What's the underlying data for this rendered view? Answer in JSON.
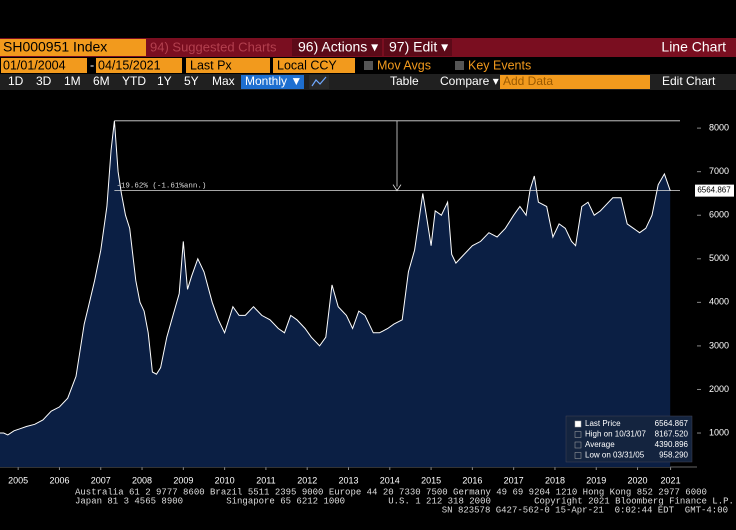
{
  "toolbar": {
    "ticker": "SH000951 Index",
    "suggested": "94) Suggested Charts",
    "actions": "96) Actions ▾",
    "edit": "97) Edit ▾",
    "view": "Line Chart",
    "start_date": "01/01/2004",
    "date_sep": "-",
    "end_date": "04/15/2021",
    "field": "Last Px",
    "currency": "Local CCY",
    "mov_avgs": "Mov Avgs",
    "key_events": "Key Events",
    "ranges": [
      "1D",
      "3D",
      "1M",
      "6M",
      "YTD",
      "1Y",
      "5Y",
      "Max"
    ],
    "period": "Monthly ▼",
    "table": "Table",
    "compare": "Compare ▾",
    "add_data": "Add Data",
    "edit_chart": "Edit Chart"
  },
  "chart_data": {
    "type": "area",
    "annotation": "-19.62% (-1.61%ann.)",
    "x": [
      2005.06,
      2005.15,
      2005.25,
      2005.4,
      2005.55,
      2005.7,
      2005.9,
      2006.1,
      2006.3,
      2006.5,
      2006.7,
      2006.9,
      2007.1,
      2007.2,
      2007.35,
      2007.5,
      2007.65,
      2007.75,
      2007.83,
      2007.92,
      2008.0,
      2008.1,
      2008.2,
      2008.35,
      2008.45,
      2008.55,
      2008.65,
      2008.75,
      2008.85,
      2008.95,
      2009.1,
      2009.25,
      2009.4,
      2009.5,
      2009.6,
      2009.7,
      2009.85,
      2010.0,
      2010.2,
      2010.35,
      2010.5,
      2010.7,
      2010.85,
      2011.0,
      2011.2,
      2011.4,
      2011.6,
      2011.8,
      2011.95,
      2012.1,
      2012.25,
      2012.45,
      2012.6,
      2012.8,
      2012.95,
      2013.1,
      2013.25,
      2013.45,
      2013.6,
      2013.75,
      2013.9,
      2014.1,
      2014.25,
      2014.45,
      2014.6,
      2014.8,
      2014.95,
      2015.1,
      2015.3,
      2015.4,
      2015.5,
      2015.6,
      2015.75,
      2015.9,
      2016.0,
      2016.1,
      2016.3,
      2016.5,
      2016.7,
      2016.9,
      2017.1,
      2017.3,
      2017.5,
      2017.65,
      2017.8,
      2017.9,
      2018.0,
      2018.1,
      2018.3,
      2018.45,
      2018.6,
      2018.75,
      2018.9,
      2019.0,
      2019.15,
      2019.3,
      2019.45,
      2019.6,
      2019.8,
      2019.9,
      2020.1,
      2020.25,
      2020.4,
      2020.55,
      2020.7,
      2020.85,
      2021.0,
      2021.15,
      2021.29
    ],
    "values": [
      1000,
      1000,
      958,
      1050,
      1100,
      1150,
      1200,
      1300,
      1500,
      1600,
      1800,
      2300,
      3500,
      3900,
      4500,
      5200,
      6200,
      7500,
      8167.52,
      7000,
      6500,
      6000,
      5700,
      4500,
      4000,
      3800,
      3300,
      2400,
      2350,
      2500,
      3200,
      3700,
      4200,
      5400,
      4300,
      4600,
      5000,
      4700,
      4000,
      3600,
      3300,
      3900,
      3700,
      3700,
      3900,
      3700,
      3600,
      3400,
      3300,
      3700,
      3600,
      3400,
      3200,
      3000,
      3200,
      4400,
      3900,
      3700,
      3400,
      3800,
      3700,
      3300,
      3300,
      3400,
      3500,
      3600,
      4700,
      5200,
      6500,
      5900,
      5300,
      6100,
      6000,
      6300,
      5100,
      4900,
      5100,
      5300,
      5400,
      5600,
      5500,
      5700,
      6000,
      6200,
      6000,
      6600,
      6900,
      6300,
      6200,
      5500,
      5800,
      5700,
      5400,
      5300,
      6200,
      6300,
      6000,
      6100,
      6300,
      6400,
      6400,
      5800,
      5700,
      5600,
      5700,
      6000,
      6700,
      6950,
      6564.867
    ],
    "color": "#ffffff",
    "fill": "#0b1f44",
    "xlim": [
      2005.06,
      2021.94
    ],
    "ylim": [
      220,
      8370
    ],
    "xticks": [
      {
        "value": 2005.5,
        "label": "2005"
      },
      {
        "value": 2006.5,
        "label": "2006"
      },
      {
        "value": 2007.5,
        "label": "2007"
      },
      {
        "value": 2008.5,
        "label": "2008"
      },
      {
        "value": 2009.5,
        "label": "2009"
      },
      {
        "value": 2010.5,
        "label": "2010"
      },
      {
        "value": 2011.5,
        "label": "2011"
      },
      {
        "value": 2012.5,
        "label": "2012"
      },
      {
        "value": 2013.5,
        "label": "2013"
      },
      {
        "value": 2014.5,
        "label": "2014"
      },
      {
        "value": 2015.5,
        "label": "2015"
      },
      {
        "value": 2016.5,
        "label": "2016"
      },
      {
        "value": 2017.5,
        "label": "2017"
      },
      {
        "value": 2018.5,
        "label": "2018"
      },
      {
        "value": 2019.5,
        "label": "2019"
      },
      {
        "value": 2020.5,
        "label": "2020"
      },
      {
        "value": 2021.3,
        "label": "2021"
      }
    ],
    "yticks": [
      1000,
      2000,
      3000,
      4000,
      5000,
      6000,
      7000,
      8000
    ],
    "stats": {
      "labels": [
        "Last Price",
        "High on 10/31/07",
        "Average",
        "Low on 03/31/05"
      ],
      "values": [
        6564.867,
        8167.52,
        4390.896,
        958.29
      ],
      "value_labels": [
        "6564.867",
        "8167.520",
        "4390.896",
        "958.290"
      ]
    }
  },
  "footer": {
    "lines": [
      "Australia 61 2 9777 8600 Brazil 5511 2395 9000 Europe 44 20 7330 7500 Germany 49 69 9204 1210 Hong Kong 852 2977 6000",
      "Japan 81 3 4565 8900        Singapore 65 6212 1000        U.S. 1 212 318 2000        Copyright 2021 Bloomberg Finance L.P.",
      "SN 823578 G427-562-0 15-Apr-21  0:02:44 EDT  GMT-4:00"
    ]
  }
}
